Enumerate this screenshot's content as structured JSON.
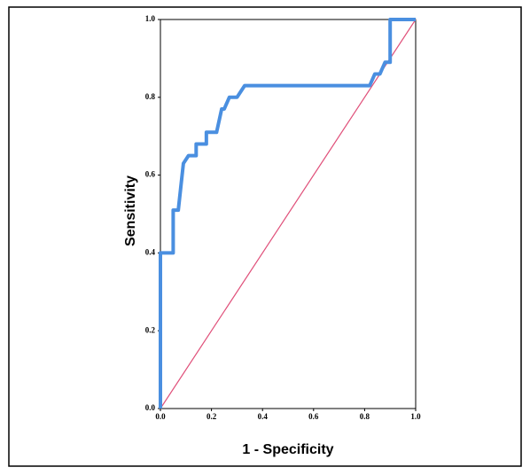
{
  "chart_data": {
    "type": "line",
    "xlabel": "1 - Specificity",
    "ylabel": "Sensitivity",
    "xlim": [
      0,
      1
    ],
    "ylim": [
      0,
      1
    ],
    "xticks": [
      {
        "value": 0,
        "label": "0.0"
      },
      0.2,
      0.4,
      0.6,
      0.8,
      {
        "value": 1,
        "label": "1.0"
      }
    ],
    "yticks": [
      {
        "value": 0,
        "label": "0.0"
      },
      0.2,
      0.4,
      0.6,
      0.8,
      {
        "value": 1,
        "label": "1.0"
      }
    ],
    "series": [
      {
        "color": "#4a8fe0",
        "x": [
          0,
          0,
          0.05,
          0.05,
          0.07,
          0.08,
          0.09,
          0.11,
          0.14,
          0.14,
          0.18,
          0.18,
          0.22,
          0.24,
          0.25,
          0.27,
          0.3,
          0.33,
          0.82,
          0.84,
          0.86,
          0.88,
          0.9,
          0.9,
          1.0
        ],
        "values": [
          0,
          0.4,
          0.4,
          0.51,
          0.51,
          0.57,
          0.63,
          0.65,
          0.65,
          0.68,
          0.68,
          0.71,
          0.71,
          0.77,
          0.77,
          0.8,
          0.8,
          0.83,
          0.83,
          0.86,
          0.86,
          0.89,
          0.89,
          1.0,
          1.0
        ]
      },
      {
        "color": "#e0507a",
        "x": [
          0,
          1
        ],
        "values": [
          0,
          1
        ]
      }
    ]
  }
}
